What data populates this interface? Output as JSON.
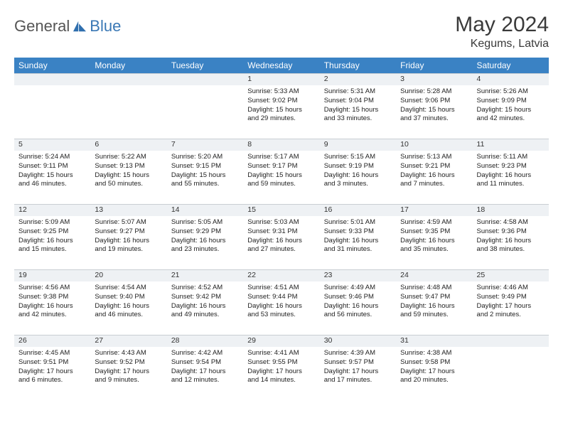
{
  "brand": {
    "general": "General",
    "blue": "Blue",
    "logo_color": "#2f6fae"
  },
  "title": "May 2024",
  "location": "Kegums, Latvia",
  "header_bg": "#3a82c4",
  "weekdays": [
    "Sunday",
    "Monday",
    "Tuesday",
    "Wednesday",
    "Thursday",
    "Friday",
    "Saturday"
  ],
  "weeks": [
    {
      "nums": [
        "",
        "",
        "",
        "1",
        "2",
        "3",
        "4"
      ],
      "cells": [
        [
          "",
          "",
          "",
          ""
        ],
        [
          "",
          "",
          "",
          ""
        ],
        [
          "",
          "",
          "",
          ""
        ],
        [
          "Sunrise: 5:33 AM",
          "Sunset: 9:02 PM",
          "Daylight: 15 hours",
          "and 29 minutes."
        ],
        [
          "Sunrise: 5:31 AM",
          "Sunset: 9:04 PM",
          "Daylight: 15 hours",
          "and 33 minutes."
        ],
        [
          "Sunrise: 5:28 AM",
          "Sunset: 9:06 PM",
          "Daylight: 15 hours",
          "and 37 minutes."
        ],
        [
          "Sunrise: 5:26 AM",
          "Sunset: 9:09 PM",
          "Daylight: 15 hours",
          "and 42 minutes."
        ]
      ]
    },
    {
      "nums": [
        "5",
        "6",
        "7",
        "8",
        "9",
        "10",
        "11"
      ],
      "cells": [
        [
          "Sunrise: 5:24 AM",
          "Sunset: 9:11 PM",
          "Daylight: 15 hours",
          "and 46 minutes."
        ],
        [
          "Sunrise: 5:22 AM",
          "Sunset: 9:13 PM",
          "Daylight: 15 hours",
          "and 50 minutes."
        ],
        [
          "Sunrise: 5:20 AM",
          "Sunset: 9:15 PM",
          "Daylight: 15 hours",
          "and 55 minutes."
        ],
        [
          "Sunrise: 5:17 AM",
          "Sunset: 9:17 PM",
          "Daylight: 15 hours",
          "and 59 minutes."
        ],
        [
          "Sunrise: 5:15 AM",
          "Sunset: 9:19 PM",
          "Daylight: 16 hours",
          "and 3 minutes."
        ],
        [
          "Sunrise: 5:13 AM",
          "Sunset: 9:21 PM",
          "Daylight: 16 hours",
          "and 7 minutes."
        ],
        [
          "Sunrise: 5:11 AM",
          "Sunset: 9:23 PM",
          "Daylight: 16 hours",
          "and 11 minutes."
        ]
      ]
    },
    {
      "nums": [
        "12",
        "13",
        "14",
        "15",
        "16",
        "17",
        "18"
      ],
      "cells": [
        [
          "Sunrise: 5:09 AM",
          "Sunset: 9:25 PM",
          "Daylight: 16 hours",
          "and 15 minutes."
        ],
        [
          "Sunrise: 5:07 AM",
          "Sunset: 9:27 PM",
          "Daylight: 16 hours",
          "and 19 minutes."
        ],
        [
          "Sunrise: 5:05 AM",
          "Sunset: 9:29 PM",
          "Daylight: 16 hours",
          "and 23 minutes."
        ],
        [
          "Sunrise: 5:03 AM",
          "Sunset: 9:31 PM",
          "Daylight: 16 hours",
          "and 27 minutes."
        ],
        [
          "Sunrise: 5:01 AM",
          "Sunset: 9:33 PM",
          "Daylight: 16 hours",
          "and 31 minutes."
        ],
        [
          "Sunrise: 4:59 AM",
          "Sunset: 9:35 PM",
          "Daylight: 16 hours",
          "and 35 minutes."
        ],
        [
          "Sunrise: 4:58 AM",
          "Sunset: 9:36 PM",
          "Daylight: 16 hours",
          "and 38 minutes."
        ]
      ]
    },
    {
      "nums": [
        "19",
        "20",
        "21",
        "22",
        "23",
        "24",
        "25"
      ],
      "cells": [
        [
          "Sunrise: 4:56 AM",
          "Sunset: 9:38 PM",
          "Daylight: 16 hours",
          "and 42 minutes."
        ],
        [
          "Sunrise: 4:54 AM",
          "Sunset: 9:40 PM",
          "Daylight: 16 hours",
          "and 46 minutes."
        ],
        [
          "Sunrise: 4:52 AM",
          "Sunset: 9:42 PM",
          "Daylight: 16 hours",
          "and 49 minutes."
        ],
        [
          "Sunrise: 4:51 AM",
          "Sunset: 9:44 PM",
          "Daylight: 16 hours",
          "and 53 minutes."
        ],
        [
          "Sunrise: 4:49 AM",
          "Sunset: 9:46 PM",
          "Daylight: 16 hours",
          "and 56 minutes."
        ],
        [
          "Sunrise: 4:48 AM",
          "Sunset: 9:47 PM",
          "Daylight: 16 hours",
          "and 59 minutes."
        ],
        [
          "Sunrise: 4:46 AM",
          "Sunset: 9:49 PM",
          "Daylight: 17 hours",
          "and 2 minutes."
        ]
      ]
    },
    {
      "nums": [
        "26",
        "27",
        "28",
        "29",
        "30",
        "31",
        ""
      ],
      "cells": [
        [
          "Sunrise: 4:45 AM",
          "Sunset: 9:51 PM",
          "Daylight: 17 hours",
          "and 6 minutes."
        ],
        [
          "Sunrise: 4:43 AM",
          "Sunset: 9:52 PM",
          "Daylight: 17 hours",
          "and 9 minutes."
        ],
        [
          "Sunrise: 4:42 AM",
          "Sunset: 9:54 PM",
          "Daylight: 17 hours",
          "and 12 minutes."
        ],
        [
          "Sunrise: 4:41 AM",
          "Sunset: 9:55 PM",
          "Daylight: 17 hours",
          "and 14 minutes."
        ],
        [
          "Sunrise: 4:39 AM",
          "Sunset: 9:57 PM",
          "Daylight: 17 hours",
          "and 17 minutes."
        ],
        [
          "Sunrise: 4:38 AM",
          "Sunset: 9:58 PM",
          "Daylight: 17 hours",
          "and 20 minutes."
        ],
        [
          "",
          "",
          "",
          ""
        ]
      ]
    }
  ]
}
